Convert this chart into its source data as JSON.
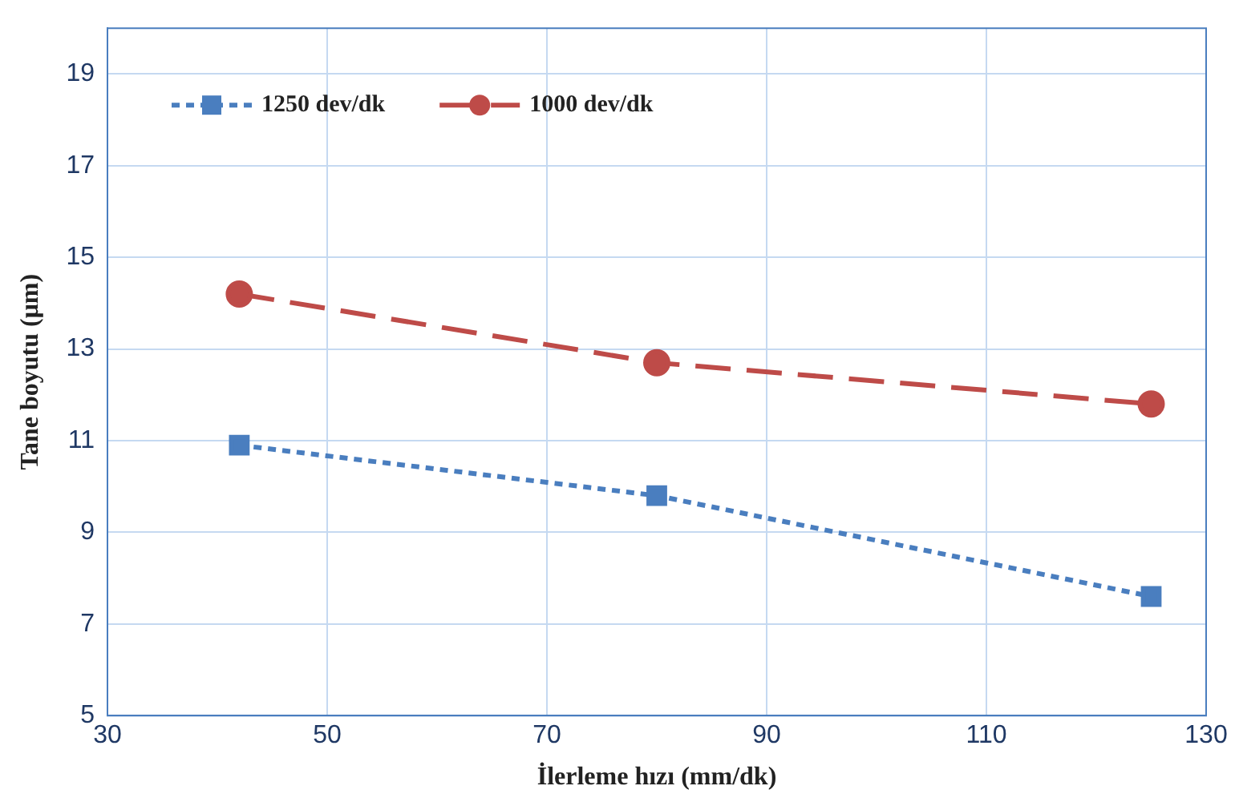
{
  "chart_data": {
    "type": "line",
    "xlabel": "İlerleme hızı (mm/dk)",
    "ylabel": "Tane boyutu (μm)",
    "x": [
      42,
      80,
      125
    ],
    "series": [
      {
        "name": "1250 dev/dk",
        "color": "#4a7ebf",
        "values": [
          10.9,
          9.8,
          7.6
        ],
        "marker": "square",
        "line_style": "dotted"
      },
      {
        "name": "1000 dev/dk",
        "color": "#be4b48",
        "values": [
          14.2,
          12.7,
          11.8
        ],
        "marker": "circle",
        "line_style": "dashed"
      }
    ],
    "xlim": [
      30,
      130
    ],
    "xticks": [
      30,
      50,
      70,
      90,
      110,
      130
    ],
    "ylim": [
      5,
      20
    ],
    "yticks": [
      5,
      7,
      9,
      11,
      13,
      15,
      17,
      19
    ],
    "grid": true,
    "legend": "top left"
  }
}
